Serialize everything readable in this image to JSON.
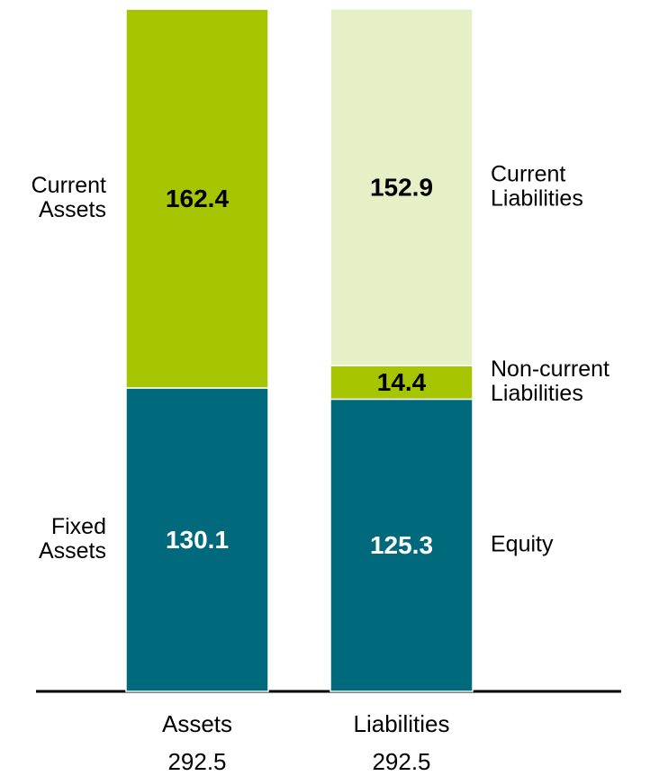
{
  "chart_data": {
    "type": "stacked_bar",
    "categories": [
      "Assets",
      "Liabilities"
    ],
    "category_totals": [
      292.5,
      292.5
    ],
    "series": [
      {
        "name": "Fixed Assets",
        "color": "#006a7c",
        "values": [
          130.1,
          null
        ]
      },
      {
        "name": "Current Assets",
        "color": "#a6c400",
        "values": [
          162.4,
          null
        ]
      },
      {
        "name": "Equity",
        "color": "#006a7c",
        "values": [
          null,
          125.3
        ]
      },
      {
        "name": "Non-current Liabilities",
        "color": "#a6c400",
        "values": [
          null,
          14.4
        ]
      },
      {
        "name": "Current Liabilities",
        "color": "#e6f0c6",
        "values": [
          null,
          152.9
        ]
      }
    ]
  }
}
